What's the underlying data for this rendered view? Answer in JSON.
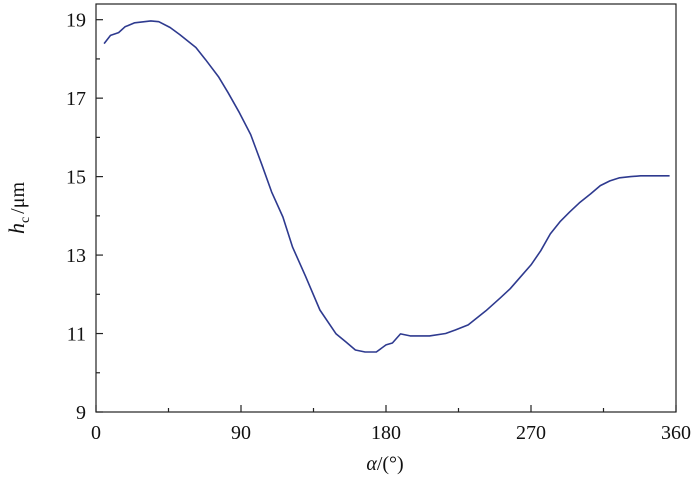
{
  "chart_data": {
    "type": "line",
    "x_label": {
      "symbol": "α",
      "unit": "/(°)"
    },
    "y_label": {
      "symbol": "h",
      "subscript": "c",
      "unit": "/μm"
    },
    "series": [
      {
        "color": "#2e3a8f",
        "x": [
          5,
          9,
          14,
          18,
          24,
          34,
          39,
          46,
          52,
          62,
          68,
          76,
          82,
          89,
          96,
          103,
          109,
          116,
          122,
          130,
          139,
          149,
          155,
          161,
          167,
          174,
          180,
          184,
          189,
          195,
          207,
          217,
          223,
          231,
          242,
          251,
          257,
          263,
          270,
          276,
          282,
          288,
          294,
          300,
          307,
          313,
          319,
          325,
          332,
          338,
          356
        ],
        "values": [
          18.39,
          18.6,
          18.67,
          18.82,
          18.92,
          18.97,
          18.95,
          18.8,
          18.62,
          18.29,
          17.98,
          17.55,
          17.14,
          16.63,
          16.07,
          15.3,
          14.61,
          13.97,
          13.2,
          12.47,
          11.6,
          10.99,
          10.79,
          10.58,
          10.53,
          10.53,
          10.71,
          10.76,
          10.99,
          10.94,
          10.94,
          11.0,
          11.09,
          11.22,
          11.58,
          11.91,
          12.14,
          12.42,
          12.75,
          13.11,
          13.54,
          13.85,
          14.1,
          14.33,
          14.56,
          14.77,
          14.89,
          14.97,
          15.0,
          15.02,
          15.02
        ]
      }
    ],
    "xlim": [
      0,
      360
    ],
    "xticks": [
      0,
      90,
      180,
      270,
      360
    ],
    "minor_xticks": [
      45,
      135,
      225,
      315
    ],
    "ylim": [
      9,
      19.4
    ],
    "yticks": [
      9,
      11,
      13,
      15,
      17,
      19
    ],
    "minor_yticks": [
      10,
      12,
      14,
      16,
      18
    ],
    "grid": false
  }
}
